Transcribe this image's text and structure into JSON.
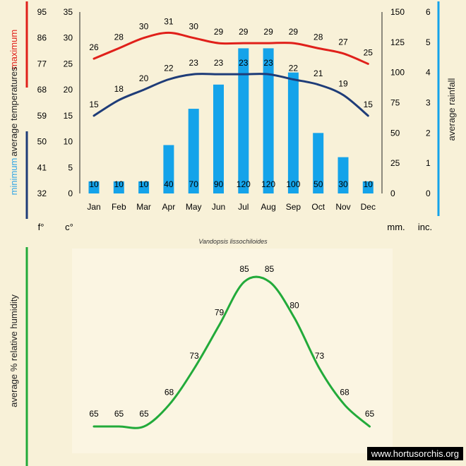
{
  "species_caption": "Vandopsis lissochiloides",
  "watermark": "www.hortusorchis.org",
  "unit_labels": {
    "fahrenheit": "f°",
    "celsius": "c°",
    "mm": "mm.",
    "inches": "inc."
  },
  "axis_titles": {
    "left_max": "maximum",
    "left_avg": "average temperatures",
    "left_min": "minimum",
    "right_rain": "average rainfall",
    "humidity": "average %  relative humidity"
  },
  "colors": {
    "background": "#f8f1d8",
    "max_line": "#e0201a",
    "min_line": "#1e3c78",
    "rain_bar": "#14a3ea",
    "humidity_line": "#22aa3a",
    "min_label": "#31a5e6"
  },
  "chart_data": [
    {
      "type": "bar+line",
      "categories": [
        "Jan",
        "Feb",
        "Mar",
        "Apr",
        "May",
        "Jun",
        "Jul",
        "Aug",
        "Sep",
        "Oct",
        "Nov",
        "Dec"
      ],
      "series": [
        {
          "name": "maximum",
          "kind": "line",
          "axis": "celsius",
          "values": [
            26,
            28,
            30,
            31,
            30,
            29,
            29,
            29,
            29,
            28,
            27,
            25
          ]
        },
        {
          "name": "minimum",
          "kind": "line",
          "axis": "celsius",
          "values": [
            15,
            18,
            20,
            22,
            23,
            23,
            23,
            23,
            22,
            21,
            19,
            15
          ]
        },
        {
          "name": "average rainfall",
          "kind": "bar",
          "axis": "mm",
          "values": [
            10,
            10,
            10,
            40,
            70,
            90,
            120,
            120,
            100,
            50,
            30,
            10
          ]
        }
      ],
      "axes": {
        "fahrenheit": {
          "ticks": [
            "95",
            "86",
            "77",
            "68",
            "59",
            "50",
            "41",
            "32"
          ]
        },
        "celsius": {
          "ticks": [
            "35",
            "30",
            "25",
            "20",
            "15",
            "10",
            "5",
            "0"
          ],
          "range": [
            0,
            35
          ]
        },
        "mm": {
          "ticks": [
            "150",
            "125",
            "100",
            "75",
            "50",
            "25",
            "0"
          ],
          "range": [
            0,
            150
          ]
        },
        "inches": {
          "ticks": [
            "6",
            "5",
            "4",
            "3",
            "2",
            "1",
            "0"
          ]
        }
      }
    },
    {
      "type": "line",
      "series": [
        {
          "name": "average % relative humidity",
          "values": [
            65,
            65,
            65,
            68,
            73,
            79,
            85,
            85,
            80,
            73,
            68,
            65
          ]
        }
      ]
    }
  ]
}
